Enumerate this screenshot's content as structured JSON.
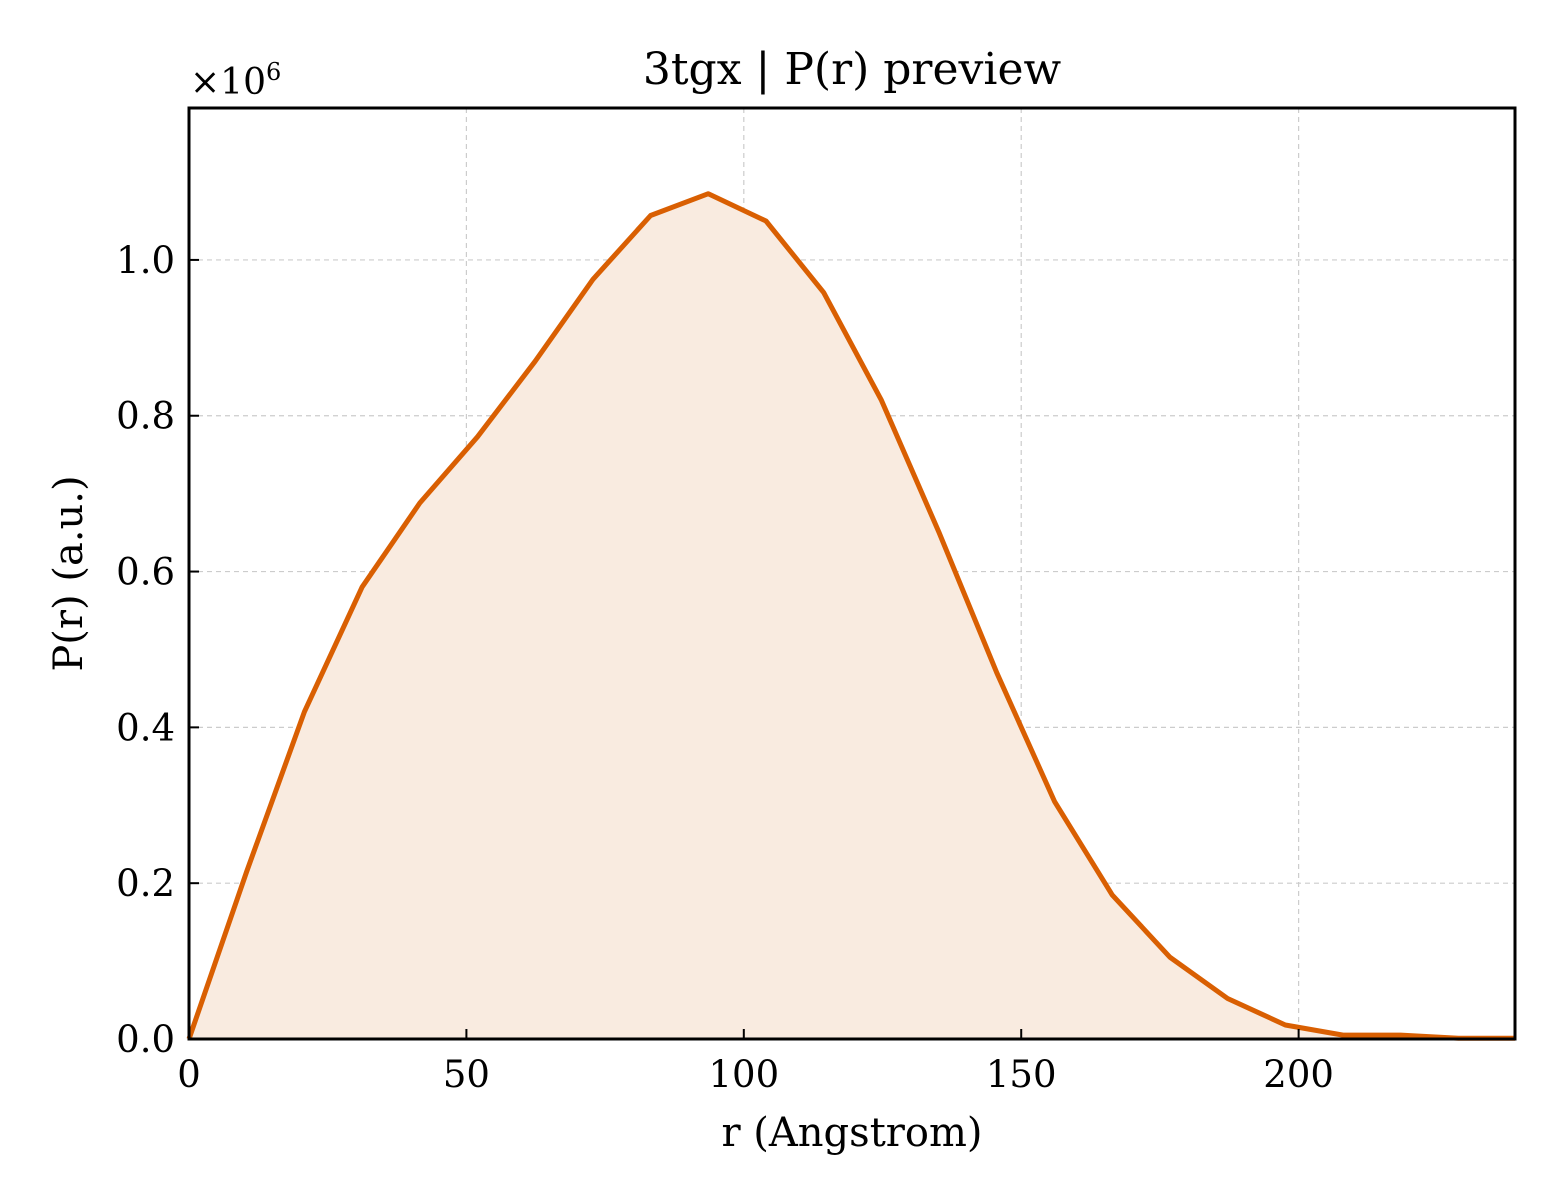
{
  "chart_data": {
    "type": "area",
    "title": "3tgx | P(r) preview",
    "xlabel": "r (Angstrom)",
    "ylabel": "P(r) (a.u.)",
    "y_multiplier_label": "×10",
    "y_multiplier_exponent": "6",
    "xlim": [
      0,
      239
    ],
    "ylim": [
      0,
      1.195
    ],
    "xticks": [
      0,
      50,
      100,
      150,
      200
    ],
    "yticks": [
      0.0,
      0.2,
      0.4,
      0.6,
      0.8,
      1.0
    ],
    "xtick_labels": [
      "0",
      "50",
      "100",
      "150",
      "200"
    ],
    "ytick_labels": [
      "0.0",
      "0.2",
      "0.4",
      "0.6",
      "0.8",
      "1.0"
    ],
    "grid": true,
    "legend": "none",
    "series": [
      {
        "color": "#d95f02",
        "fill_color": "#f9ebe0",
        "x": [
          0,
          10.4,
          20.8,
          31.2,
          41.6,
          52.0,
          62.4,
          72.8,
          83.2,
          93.6,
          104.0,
          114.4,
          124.8,
          135.2,
          145.6,
          156.0,
          166.4,
          176.8,
          187.2,
          197.6,
          208.0,
          218.4,
          228.8,
          239.0
        ],
        "y": [
          0.0,
          0.215,
          0.42,
          0.58,
          0.688,
          0.773,
          0.87,
          0.975,
          1.057,
          1.085,
          1.05,
          0.958,
          0.82,
          0.65,
          0.47,
          0.305,
          0.185,
          0.105,
          0.052,
          0.018,
          0.005,
          0.005,
          0.001,
          0.001
        ]
      }
    ]
  }
}
